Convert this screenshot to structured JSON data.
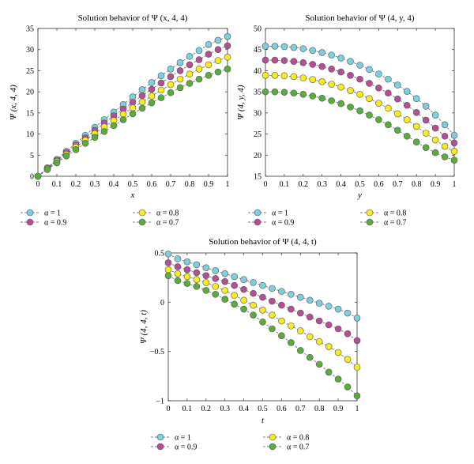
{
  "colors": {
    "alpha_1": "#7ecfdc",
    "alpha_0_9": "#b24f95",
    "alpha_0_8": "#f6ec1e",
    "alpha_0_7": "#5bab3e",
    "marker_edge": "#555555",
    "line": "#555555"
  },
  "legend_layout": "two columns below each panel",
  "chart_data": [
    {
      "id": "psi_x",
      "type": "line",
      "title": "Solution behavior of Ψ (x, 4, 4)",
      "xlabel": "x",
      "ylabel": "Ψ (x, 4, 4)",
      "xlim": [
        0,
        1
      ],
      "ylim": [
        0,
        35
      ],
      "xticks": [
        0,
        0.1,
        0.2,
        0.3,
        0.4,
        0.5,
        0.6,
        0.7,
        0.8,
        0.9,
        1
      ],
      "xticklabels": [
        "0",
        "0.1",
        "0.2",
        "0.3",
        "0.4",
        "0.5",
        "0.6",
        "0.7",
        "0.8",
        "0.9",
        "1"
      ],
      "yticks": [
        0,
        5,
        10,
        15,
        20,
        25,
        30,
        35
      ],
      "yticklabels": [
        "0",
        "5",
        "10",
        "15",
        "20",
        "25",
        "30",
        "35"
      ],
      "grid": false,
      "x": [
        0,
        0.05,
        0.1,
        0.15,
        0.2,
        0.25,
        0.3,
        0.35,
        0.4,
        0.45,
        0.5,
        0.55,
        0.6,
        0.65,
        0.7,
        0.75,
        0.8,
        0.85,
        0.9,
        0.95,
        1
      ],
      "series": [
        {
          "name": "α = 1",
          "color_key": "alpha_1",
          "values": [
            0,
            2.0,
            4.0,
            5.9,
            7.8,
            9.7,
            11.6,
            13.4,
            15.2,
            17.0,
            18.8,
            20.5,
            22.2,
            23.8,
            25.4,
            26.9,
            28.4,
            29.8,
            31.2,
            32.2,
            33.1
          ]
        },
        {
          "name": "α = 0.9",
          "color_key": "alpha_0_9",
          "values": [
            0,
            1.9,
            3.8,
            5.6,
            7.4,
            9.1,
            10.9,
            12.6,
            14.3,
            15.9,
            17.5,
            19.1,
            20.6,
            22.1,
            23.6,
            25.0,
            26.4,
            27.6,
            28.9,
            30.0,
            30.9
          ]
        },
        {
          "name": "α = 0.8",
          "color_key": "alpha_0_8",
          "values": [
            0,
            1.8,
            3.5,
            5.2,
            6.9,
            8.5,
            10.1,
            11.7,
            13.2,
            14.7,
            16.2,
            17.6,
            19.0,
            20.4,
            21.7,
            23.0,
            24.2,
            25.4,
            26.4,
            27.4,
            28.2
          ]
        },
        {
          "name": "α = 0.7",
          "color_key": "alpha_0_7",
          "values": [
            0,
            1.6,
            3.2,
            4.8,
            6.3,
            7.8,
            9.2,
            10.6,
            12.0,
            13.4,
            14.8,
            16.1,
            17.4,
            18.6,
            19.8,
            21.0,
            22.0,
            23.0,
            23.9,
            24.7,
            25.4
          ]
        }
      ]
    },
    {
      "id": "psi_y",
      "type": "line",
      "title": "Solution behavior of Ψ (4, y, 4)",
      "xlabel": "y",
      "ylabel": "Ψ (4, y, 4)",
      "xlim": [
        0,
        1
      ],
      "ylim": [
        15,
        50
      ],
      "xticks": [
        0,
        0.1,
        0.2,
        0.3,
        0.4,
        0.5,
        0.6,
        0.7,
        0.8,
        0.9,
        1
      ],
      "xticklabels": [
        "0",
        "0.1",
        "0.2",
        "0.3",
        "0.4",
        "0.5",
        "0.6",
        "0.7",
        "0.8",
        "0.9",
        "1"
      ],
      "yticks": [
        15,
        20,
        25,
        30,
        35,
        40,
        45,
        50
      ],
      "yticklabels": [
        "15",
        "20",
        "25",
        "30",
        "35",
        "40",
        "45",
        "50"
      ],
      "grid": false,
      "x": [
        0,
        0.05,
        0.1,
        0.15,
        0.2,
        0.25,
        0.3,
        0.35,
        0.4,
        0.45,
        0.5,
        0.55,
        0.6,
        0.65,
        0.7,
        0.75,
        0.8,
        0.85,
        0.9,
        0.95,
        1
      ],
      "series": [
        {
          "name": "α = 1",
          "color_key": "alpha_1",
          "values": [
            45.8,
            45.8,
            45.7,
            45.5,
            45.2,
            44.8,
            44.3,
            43.7,
            43.0,
            42.2,
            41.3,
            40.3,
            39.2,
            38.0,
            36.6,
            35.1,
            33.4,
            31.6,
            29.5,
            27.2,
            24.7
          ]
        },
        {
          "name": "α = 0.9",
          "color_key": "alpha_0_9",
          "values": [
            42.5,
            42.5,
            42.4,
            42.2,
            41.9,
            41.5,
            41.0,
            40.4,
            39.7,
            38.9,
            38.0,
            37.0,
            35.9,
            34.7,
            33.3,
            31.8,
            30.1,
            28.3,
            26.4,
            24.5,
            22.9
          ]
        },
        {
          "name": "α = 0.8",
          "color_key": "alpha_0_8",
          "values": [
            38.9,
            38.9,
            38.8,
            38.6,
            38.3,
            37.9,
            37.4,
            36.8,
            36.1,
            35.3,
            34.4,
            33.4,
            32.3,
            31.1,
            29.8,
            28.4,
            26.8,
            25.2,
            23.6,
            22.1,
            20.9
          ]
        },
        {
          "name": "α = 0.7",
          "color_key": "alpha_0_7",
          "values": [
            35.0,
            35.0,
            34.9,
            34.7,
            34.4,
            34.0,
            33.5,
            32.9,
            32.2,
            31.4,
            30.5,
            29.5,
            28.4,
            27.2,
            25.9,
            24.5,
            23.1,
            21.8,
            20.6,
            19.6,
            18.8
          ]
        }
      ]
    },
    {
      "id": "psi_t",
      "type": "line",
      "title": "Solution behavior of Ψ (4, 4, t)",
      "xlabel": "t",
      "ylabel": "Ψ (4, 4, t)",
      "xlim": [
        0,
        1
      ],
      "ylim": [
        -1,
        0.5
      ],
      "xticks": [
        0,
        0.1,
        0.2,
        0.3,
        0.4,
        0.5,
        0.6,
        0.7,
        0.8,
        0.9,
        1
      ],
      "xticklabels": [
        "0",
        "0.1",
        "0.2",
        "0.3",
        "0.4",
        "0.5",
        "0.6",
        "0.7",
        "0.8",
        "0.9",
        "1"
      ],
      "yticks": [
        -1,
        -0.5,
        0,
        0.5
      ],
      "yticklabels": [
        "−1",
        "−0.5",
        "0",
        "0.5"
      ],
      "grid": false,
      "x": [
        0,
        0.05,
        0.1,
        0.15,
        0.2,
        0.25,
        0.3,
        0.35,
        0.4,
        0.45,
        0.5,
        0.55,
        0.6,
        0.65,
        0.7,
        0.75,
        0.8,
        0.85,
        0.9,
        0.95,
        1
      ],
      "series": [
        {
          "name": "α = 1",
          "color_key": "alpha_1",
          "values": [
            0.49,
            0.44,
            0.41,
            0.38,
            0.35,
            0.32,
            0.29,
            0.26,
            0.23,
            0.2,
            0.17,
            0.14,
            0.11,
            0.08,
            0.05,
            0.02,
            -0.01,
            -0.04,
            -0.07,
            -0.11,
            -0.16
          ]
        },
        {
          "name": "α = 0.9",
          "color_key": "alpha_0_9",
          "values": [
            0.4,
            0.36,
            0.33,
            0.3,
            0.27,
            0.24,
            0.21,
            0.17,
            0.13,
            0.09,
            0.05,
            0.01,
            -0.03,
            -0.07,
            -0.11,
            -0.15,
            -0.19,
            -0.23,
            -0.27,
            -0.32,
            -0.39
          ]
        },
        {
          "name": "α = 0.8",
          "color_key": "alpha_0_8",
          "values": [
            0.33,
            0.29,
            0.26,
            0.23,
            0.2,
            0.16,
            0.12,
            0.07,
            0.02,
            -0.03,
            -0.08,
            -0.13,
            -0.19,
            -0.24,
            -0.29,
            -0.35,
            -0.4,
            -0.45,
            -0.51,
            -0.58,
            -0.66
          ]
        },
        {
          "name": "α = 0.7",
          "color_key": "alpha_0_7",
          "values": [
            0.27,
            0.22,
            0.19,
            0.16,
            0.12,
            0.08,
            0.03,
            -0.02,
            -0.07,
            -0.13,
            -0.2,
            -0.27,
            -0.34,
            -0.41,
            -0.49,
            -0.56,
            -0.63,
            -0.71,
            -0.78,
            -0.86,
            -0.95
          ]
        }
      ]
    }
  ]
}
